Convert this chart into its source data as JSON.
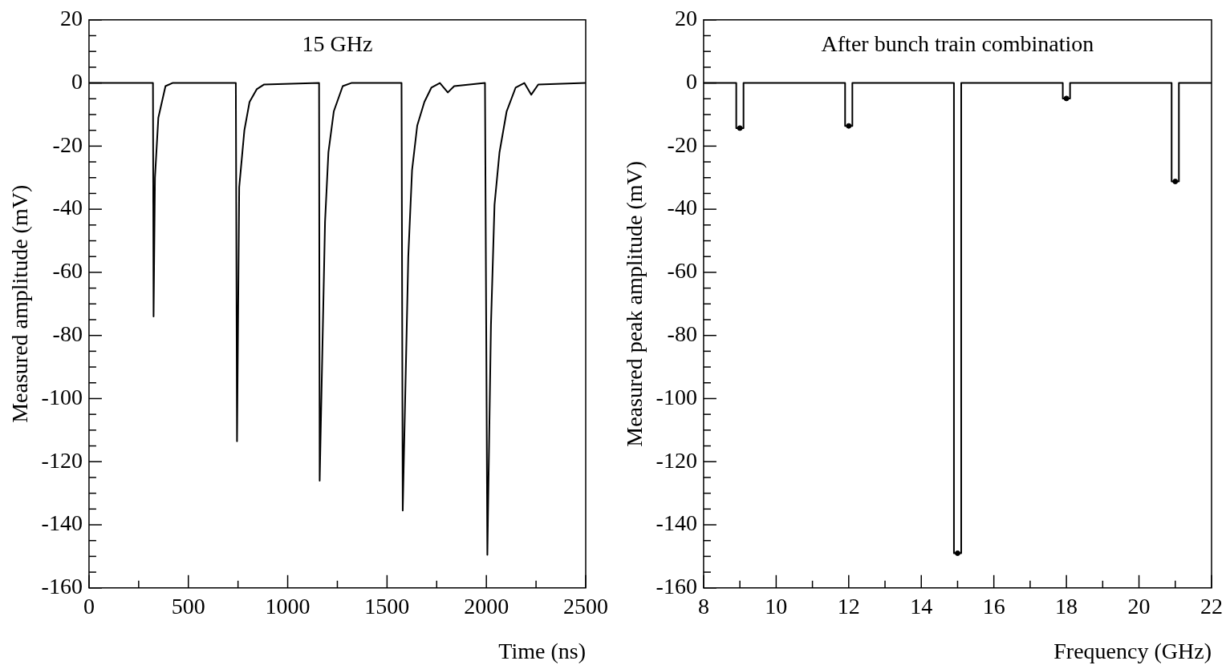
{
  "chart_data": [
    {
      "type": "line",
      "title": "15 GHz",
      "xlabel": "Time (ns)",
      "ylabel": "Measured amplitude (mV)",
      "series": [
        {
          "color": "#000000",
          "marker": "none",
          "x": [
            0,
            322,
            325,
            332,
            349,
            385,
            420,
            739,
            745,
            756,
            782,
            808,
            844,
            880,
            1158,
            1161,
            1188,
            1205,
            1232,
            1277,
            1320,
            1573,
            1579,
            1607,
            1626,
            1652,
            1688,
            1723,
            1766,
            1806,
            1838,
            1993,
            2005,
            2023,
            2041,
            2066,
            2102,
            2147,
            2191,
            2226,
            2261,
            2500
          ],
          "values": [
            0,
            0,
            -74,
            -30,
            -11,
            -1,
            0,
            0,
            -113.5,
            -33,
            -15,
            -6,
            -2,
            -0.5,
            0,
            -126,
            -44,
            -22,
            -9,
            -1,
            0,
            0,
            -135.5,
            -55,
            -27.6,
            -13.5,
            -6,
            -1.5,
            0,
            -3,
            -1,
            0,
            -149.5,
            -77,
            -38.6,
            -22,
            -9,
            -1.5,
            0,
            -3.7,
            -0.5,
            0
          ]
        }
      ],
      "xlim": [
        0,
        2500
      ],
      "ylim": [
        -160,
        20
      ],
      "xticks": [
        0,
        {
          "value": 250,
          "label": null
        },
        500,
        {
          "value": 750,
          "label": null
        },
        1000,
        {
          "value": 1250,
          "label": null
        },
        1500,
        {
          "value": 1750,
          "label": null
        },
        2000,
        {
          "value": 2250,
          "label": null
        },
        2500
      ],
      "yticks": [
        -160,
        {
          "value": -155,
          "label": null
        },
        {
          "value": -150,
          "label": null
        },
        {
          "value": -145,
          "label": null
        },
        -140,
        {
          "value": -135,
          "label": null
        },
        {
          "value": -130,
          "label": null
        },
        {
          "value": -125,
          "label": null
        },
        -120,
        {
          "value": -115,
          "label": null
        },
        {
          "value": -110,
          "label": null
        },
        {
          "value": -105,
          "label": null
        },
        -100,
        {
          "value": -95,
          "label": null
        },
        {
          "value": -90,
          "label": null
        },
        {
          "value": -85,
          "label": null
        },
        -80,
        {
          "value": -75,
          "label": null
        },
        {
          "value": -70,
          "label": null
        },
        {
          "value": -65,
          "label": null
        },
        -60,
        {
          "value": -55,
          "label": null
        },
        {
          "value": -50,
          "label": null
        },
        {
          "value": -45,
          "label": null
        },
        -40,
        {
          "value": -35,
          "label": null
        },
        {
          "value": -30,
          "label": null
        },
        {
          "value": -25,
          "label": null
        },
        -20,
        {
          "value": -15,
          "label": null
        },
        {
          "value": -10,
          "label": null
        },
        {
          "value": -5,
          "label": null
        },
        0,
        {
          "value": 5,
          "label": null
        },
        {
          "value": 10,
          "label": null
        },
        {
          "value": 15,
          "label": null
        },
        20
      ],
      "grid": false,
      "legend": false
    },
    {
      "type": "line",
      "title": "After bunch train combination",
      "xlabel": "Frequency (GHz)",
      "ylabel": "Measured peak amplitude (mV)",
      "series": [
        {
          "color": "#000000",
          "marker": "none",
          "x": [
            8,
            8.9,
            8.9,
            9.1,
            9.1,
            11.9,
            11.9,
            12.1,
            12.1,
            14.9,
            14.9,
            15.1,
            15.1,
            17.9,
            17.9,
            18.1,
            18.1,
            20.9,
            20.9,
            21.1,
            21.1,
            22
          ],
          "values": [
            0,
            0,
            -14.3,
            -14.3,
            0,
            0,
            -13.6,
            -13.6,
            0,
            0,
            -149,
            -149,
            0,
            0,
            -4.9,
            -4.9,
            0,
            0,
            -31.2,
            -31.2,
            0,
            0
          ]
        },
        {
          "type": "scatter",
          "color": "#000000",
          "marker": "circle",
          "x": [
            9,
            12,
            15,
            18,
            21
          ],
          "values": [
            -14.3,
            -13.6,
            -149,
            -4.9,
            -31.2
          ]
        }
      ],
      "xlim": [
        8,
        22
      ],
      "ylim": [
        -160,
        20
      ],
      "xticks": [
        8,
        {
          "value": 9,
          "label": null
        },
        10,
        {
          "value": 11,
          "label": null
        },
        12,
        {
          "value": 13,
          "label": null
        },
        14,
        {
          "value": 15,
          "label": null
        },
        16,
        {
          "value": 17,
          "label": null
        },
        18,
        {
          "value": 19,
          "label": null
        },
        20,
        {
          "value": 21,
          "label": null
        },
        22
      ],
      "yticks": [
        -160,
        {
          "value": -155,
          "label": null
        },
        {
          "value": -150,
          "label": null
        },
        {
          "value": -145,
          "label": null
        },
        -140,
        {
          "value": -135,
          "label": null
        },
        {
          "value": -130,
          "label": null
        },
        {
          "value": -125,
          "label": null
        },
        -120,
        {
          "value": -115,
          "label": null
        },
        {
          "value": -110,
          "label": null
        },
        {
          "value": -105,
          "label": null
        },
        -100,
        {
          "value": -95,
          "label": null
        },
        {
          "value": -90,
          "label": null
        },
        {
          "value": -85,
          "label": null
        },
        -80,
        {
          "value": -75,
          "label": null
        },
        {
          "value": -70,
          "label": null
        },
        {
          "value": -65,
          "label": null
        },
        -60,
        {
          "value": -55,
          "label": null
        },
        {
          "value": -50,
          "label": null
        },
        {
          "value": -45,
          "label": null
        },
        -40,
        {
          "value": -35,
          "label": null
        },
        {
          "value": -30,
          "label": null
        },
        {
          "value": -25,
          "label": null
        },
        -20,
        {
          "value": -15,
          "label": null
        },
        {
          "value": -10,
          "label": null
        },
        {
          "value": -5,
          "label": null
        },
        0,
        {
          "value": 5,
          "label": null
        },
        {
          "value": 10,
          "label": null
        },
        {
          "value": 15,
          "label": null
        },
        20
      ],
      "grid": false,
      "legend": false
    }
  ]
}
